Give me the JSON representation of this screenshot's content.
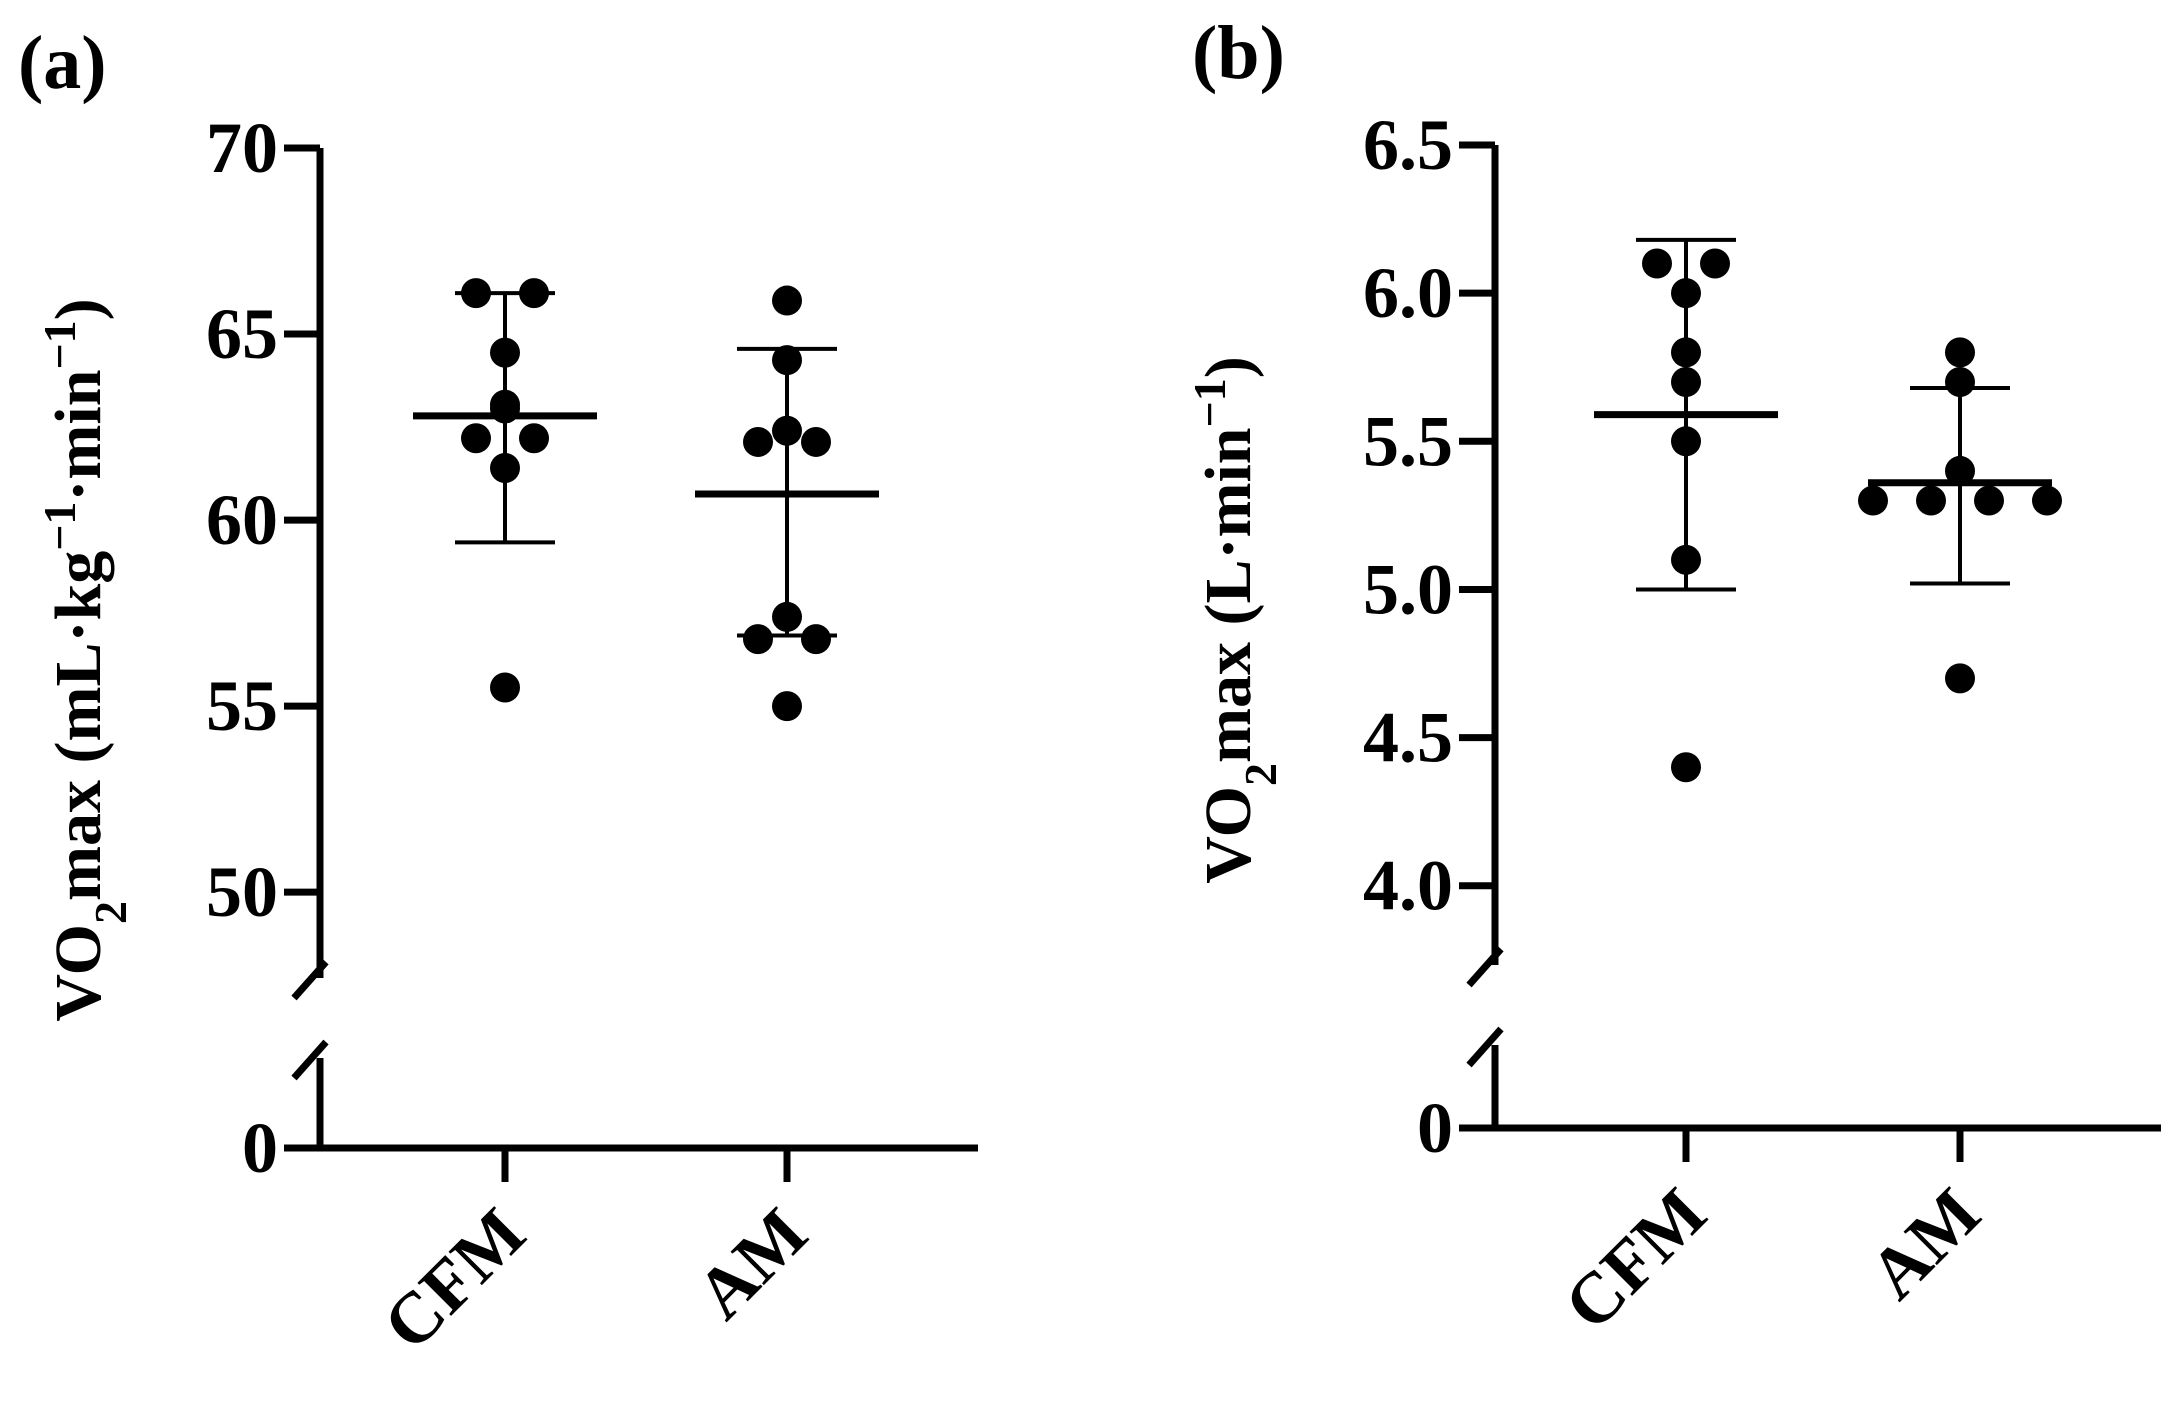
{
  "chart_data": [
    {
      "type": "scatter",
      "panel_label": "(a)",
      "ylabel": {
        "pre": "VO",
        "sub": "2",
        "main": "max (mL·kg",
        "sup1": "−1",
        "mid": "·min",
        "sup2": "−1",
        "post": ")"
      },
      "categories": [
        "CFM",
        "AM"
      ],
      "y_ticks_upper": [
        "50",
        "55",
        "60",
        "65",
        "70"
      ],
      "y_tick_values_upper": [
        50,
        55,
        60,
        65,
        70
      ],
      "y_ticks_lower": [
        "0"
      ],
      "ylim_upper": [
        48.5,
        70
      ],
      "axis_break": true,
      "series": [
        {
          "category": "CFM",
          "points": [
            66.1,
            66.1,
            64.5,
            63.1,
            63.0,
            62.2,
            62.2,
            61.4,
            55.5
          ],
          "mean": 62.8,
          "sd_upper": 66.1,
          "sd_lower": 59.4
        },
        {
          "category": "AM",
          "points": [
            65.9,
            64.3,
            62.4,
            62.1,
            62.1,
            57.4,
            56.8,
            56.8,
            55.0
          ],
          "mean": 60.7,
          "sd_upper": 64.6,
          "sd_lower": 56.9
        }
      ]
    },
    {
      "type": "scatter",
      "panel_label": "(b)",
      "ylabel": {
        "pre": "VO",
        "sub": "2",
        "main": "max (L·min",
        "sup1": "−1",
        "post": ")"
      },
      "categories": [
        "CFM",
        "AM"
      ],
      "y_ticks_upper": [
        "4.0",
        "4.5",
        "5.0",
        "5.5",
        "6.0",
        "6.5"
      ],
      "y_tick_values_upper": [
        4.0,
        4.5,
        5.0,
        5.5,
        6.0,
        6.5
      ],
      "y_ticks_lower": [
        "0"
      ],
      "ylim_upper": [
        3.8,
        6.5
      ],
      "axis_break": true,
      "series": [
        {
          "category": "CFM",
          "points": [
            6.1,
            6.1,
            6.0,
            5.8,
            5.7,
            5.5,
            5.1,
            4.4
          ],
          "mean": 5.59,
          "sd_upper": 6.18,
          "sd_lower": 5.0
        },
        {
          "category": "AM",
          "points": [
            5.8,
            5.7,
            5.4,
            5.3,
            5.3,
            5.3,
            5.3,
            4.7
          ],
          "mean": 5.36,
          "sd_upper": 5.68,
          "sd_lower": 5.02
        }
      ]
    }
  ]
}
